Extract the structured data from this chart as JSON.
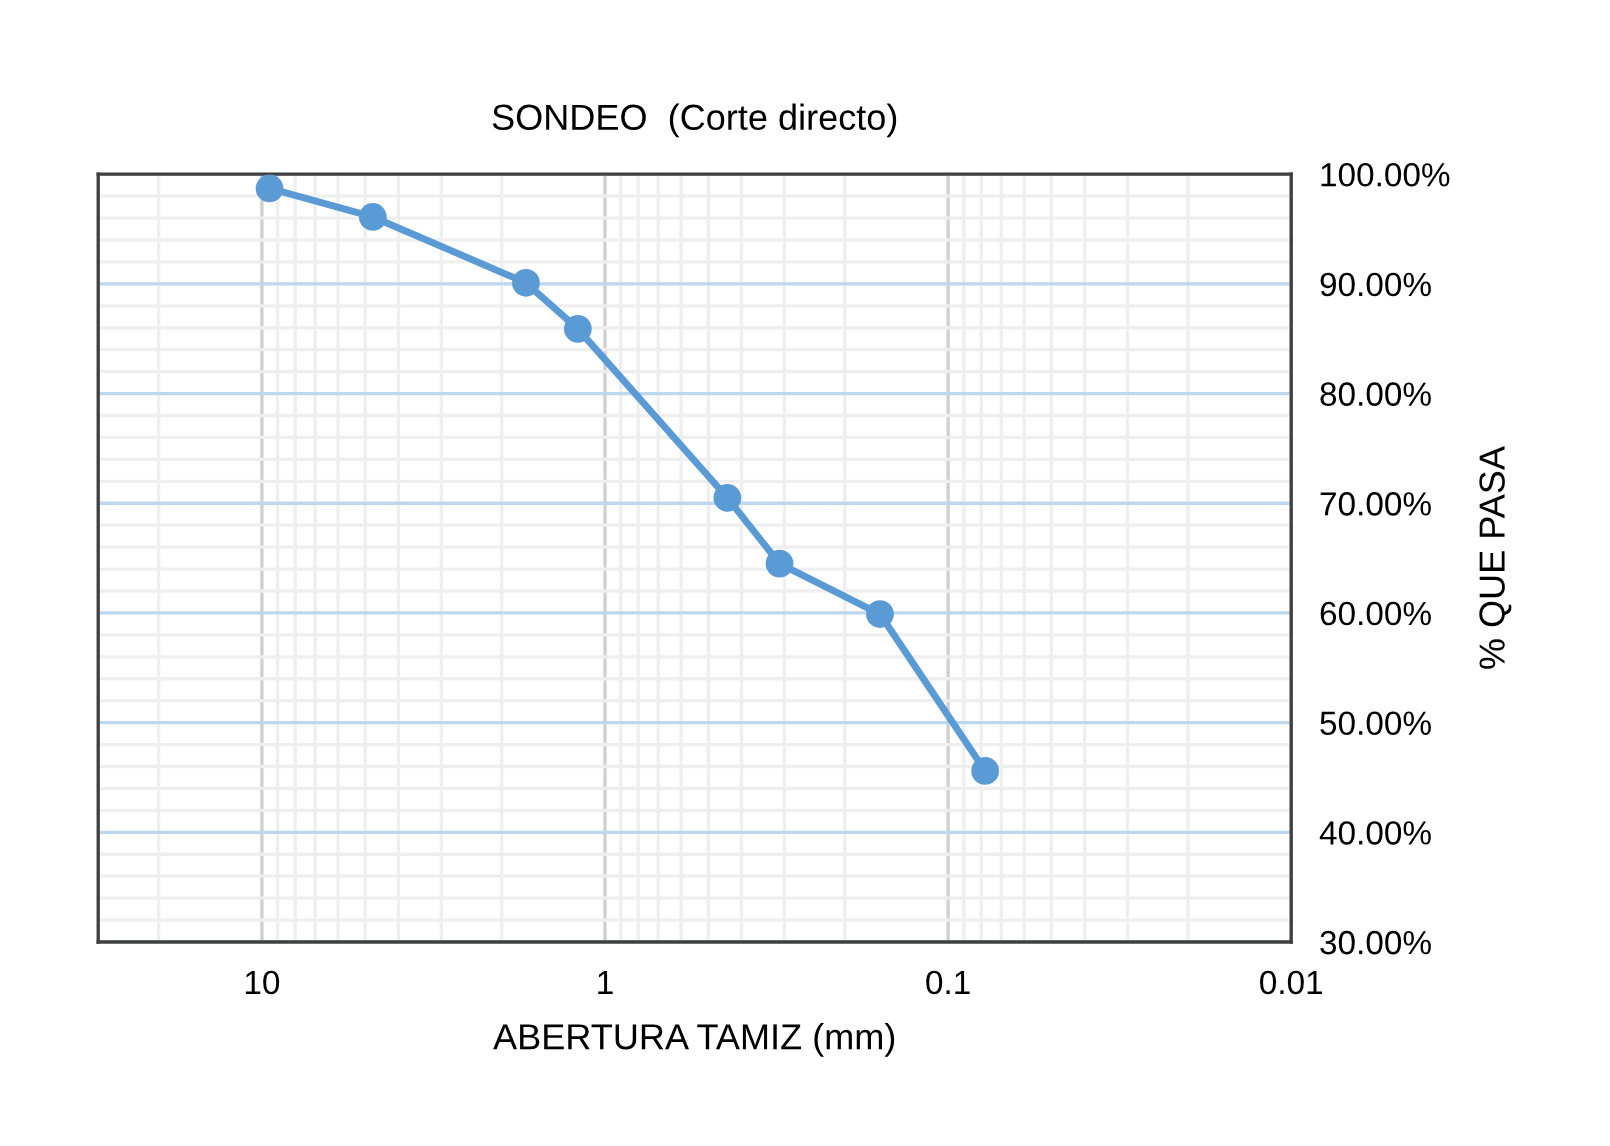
{
  "chart_data": {
    "type": "line",
    "title": "SONDEO  (Corte directo)",
    "xlabel": "ABERTURA TAMIZ (mm)",
    "ylabel": "% QUE PASA",
    "x": [
      9.5,
      4.75,
      1.7,
      1.2,
      0.44,
      0.31,
      0.158,
      0.078
    ],
    "series": [
      {
        "color": "#5b9bd5",
        "values": [
          98.7,
          96.1,
          90.1,
          85.9,
          70.5,
          64.5,
          59.9,
          45.6
        ]
      }
    ],
    "log": "x",
    "xlim": [
      30,
      0.01
    ],
    "xticks": [
      10,
      1,
      0.1,
      0.01
    ],
    "ylim": [
      30,
      100
    ],
    "yticks": [
      {
        "value": 30,
        "label": "30.00%"
      },
      {
        "value": 40,
        "label": "40.00%"
      },
      {
        "value": 50,
        "label": "50.00%"
      },
      {
        "value": 60,
        "label": "60.00%"
      },
      {
        "value": 70,
        "label": "70.00%"
      },
      {
        "value": 80,
        "label": "80.00%"
      },
      {
        "value": 90,
        "label": "90.00%"
      },
      {
        "value": 100,
        "label": "100.00%"
      }
    ],
    "grid": true,
    "marker": "circle",
    "line_style": "solid",
    "legend": false
  }
}
